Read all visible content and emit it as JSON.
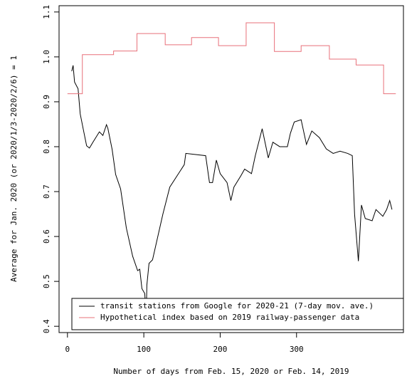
{
  "chart_data": {
    "type": "line",
    "xlabel": "Number of days from Feb. 15, 2020 or Feb. 14, 2019",
    "ylabel": "Average for Jan. 2020 (or 2020/1/3-2020/2/6) = 1",
    "xlim": [
      -11,
      440
    ],
    "xticks": [
      0,
      100,
      200,
      300
    ],
    "ylim": [
      0.386,
      1.114
    ],
    "yticks": [
      0.4,
      0.5,
      0.6,
      0.7,
      0.8,
      0.9,
      {
        "value": 1.0,
        "label": "1.0"
      },
      1.1
    ],
    "legend": "bottom",
    "series": [
      {
        "name": "transit stations from Google for 2020-21 (7-day mov. ave.)",
        "color": "#000000",
        "x": [
          5.6,
          7.4,
          9.3,
          13.9,
          16.7,
          21.4,
          25.1,
          28.8,
          33.4,
          41.8,
          46.4,
          51.1,
          52.9,
          58.5,
          63.1,
          69.6,
          77.1,
          85.4,
          91.9,
          94.7,
          97.5,
          101.2,
          103.1,
          104,
          106.8,
          111.4,
          125,
          134,
          153,
          155,
          181,
          186,
          190,
          195,
          200,
          209,
          214,
          218,
          227,
          232,
          241,
          246,
          255,
          263,
          269,
          278,
          288,
          292,
          297,
          306,
          313,
          320,
          330,
          339,
          348,
          357,
          367,
          373,
          376,
          381,
          385,
          390,
          399,
          404,
          413,
          418,
          422,
          425
        ],
        "values": [
          0.968,
          0.981,
          0.944,
          0.929,
          0.873,
          0.833,
          0.802,
          0.797,
          0.81,
          0.833,
          0.825,
          0.849,
          0.841,
          0.794,
          0.738,
          0.706,
          0.619,
          0.556,
          0.524,
          0.527,
          0.484,
          0.473,
          0.421,
          0.492,
          0.54,
          0.548,
          0.65,
          0.71,
          0.76,
          0.785,
          0.78,
          0.72,
          0.72,
          0.77,
          0.74,
          0.72,
          0.68,
          0.71,
          0.735,
          0.75,
          0.74,
          0.78,
          0.84,
          0.775,
          0.81,
          0.8,
          0.8,
          0.83,
          0.855,
          0.86,
          0.805,
          0.835,
          0.82,
          0.795,
          0.785,
          0.79,
          0.785,
          0.78,
          0.65,
          0.545,
          0.67,
          0.64,
          0.635,
          0.66,
          0.645,
          0.66,
          0.68,
          0.66
        ]
      },
      {
        "name": "Hypothetical index based on 2019 railway-passenger data",
        "color": "#e8707a",
        "x": [
          0,
          19.5,
          19.5,
          60.4,
          60.4,
          91,
          91,
          128,
          128,
          162.5,
          162.5,
          197.8,
          197.8,
          234,
          234,
          271,
          271,
          306,
          306,
          343,
          343,
          378,
          378,
          414,
          414,
          430
        ],
        "values": [
          0.918,
          0.918,
          1.005,
          1.005,
          1.013,
          1.013,
          1.052,
          1.052,
          1.027,
          1.027,
          1.043,
          1.043,
          1.025,
          1.025,
          1.076,
          1.076,
          1.012,
          1.012,
          1.025,
          1.025,
          0.995,
          0.995,
          0.982,
          0.982,
          0.918,
          0.918
        ]
      }
    ]
  }
}
